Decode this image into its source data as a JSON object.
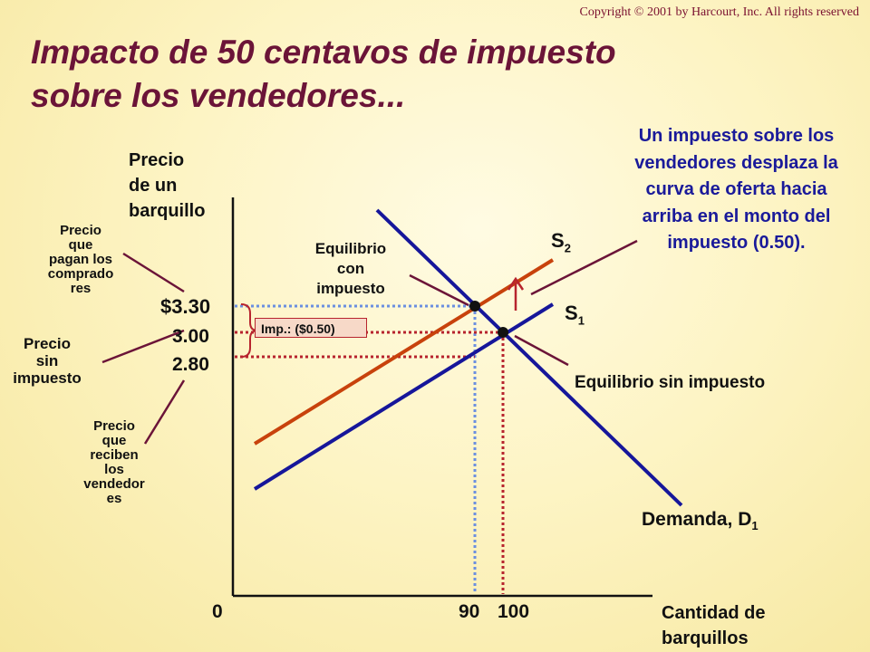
{
  "copyright": "Copyright © 2001 by Harcourt, Inc. All rights reserved",
  "title_line1": "Impacto de 50 centavos de impuesto",
  "title_line2": "sobre los vendedores...",
  "y_axis": {
    "line1": "Precio",
    "line2": "de un",
    "line3": "barquillo"
  },
  "x_axis": {
    "line1": "Cantidad de",
    "line2": "barquillos"
  },
  "ticks": {
    "p_high": "$3.30",
    "p_mid": "3.00",
    "p_low": "2.80",
    "q_zero": "0",
    "q_tax": "90",
    "q_notax": "100"
  },
  "labels": {
    "buyers_pay": [
      "Precio",
      "que",
      "pagan los",
      "comprado",
      "res"
    ],
    "no_tax": [
      "Precio",
      "sin",
      "impuesto"
    ],
    "sellers_receive": [
      "Precio",
      "que",
      "reciben",
      "los",
      "vendedor",
      "es"
    ],
    "eq_tax": [
      "Equilibrio",
      "con",
      "impuesto"
    ],
    "eq_notax": "Equilibrio sin impuesto",
    "tax_box": "Imp.: ($0.50)",
    "s2": "S",
    "s2_sub": "2",
    "s1": "S",
    "s1_sub": "1",
    "demand": "Demanda, D",
    "demand_sub": "1"
  },
  "tax_note": "Un impuesto sobre los vendedores desplaza la curva de oferta hacia arriba en el monto del impuesto (0.50).",
  "colors": {
    "title": "#6b1438",
    "supply_new": "#c8420c",
    "supply_old": "#16169a",
    "demand": "#16169a",
    "guide_blue": "#6b8fe0",
    "guide_red": "#b7242e",
    "annotation": "#6b1438"
  }
}
